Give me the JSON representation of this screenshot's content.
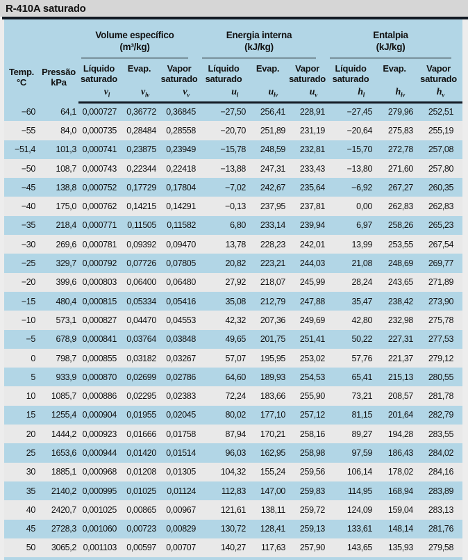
{
  "title": "R-410A saturado",
  "colors": {
    "band_blue": "#b2d6e6",
    "row_gray": "#e9e9e9",
    "title_gray": "#d6d6d6",
    "rule_dark": "#131a24",
    "text": "#121212"
  },
  "table": {
    "col_headers": {
      "temp": {
        "l1": "Temp.",
        "l2": "°C"
      },
      "pressure": {
        "l1": "Pressão",
        "l2": "kPa"
      }
    },
    "groups": [
      {
        "title": "Volume específico",
        "unit": "(m³/kg)"
      },
      {
        "title": "Energia interna",
        "unit": "(kJ/kg)"
      },
      {
        "title": "Entalpia",
        "unit": "(kJ/kg)"
      }
    ],
    "sub_headers": [
      {
        "l1": "Líquido",
        "l2": "saturado"
      },
      {
        "l1": "Evap.",
        "l2": ""
      },
      {
        "l1": "Vapor",
        "l2": "saturado"
      }
    ],
    "symbols": [
      {
        "base": "v",
        "sub": "l"
      },
      {
        "base": "v",
        "sub": "lv"
      },
      {
        "base": "v",
        "sub": "v"
      },
      {
        "base": "u",
        "sub": "l"
      },
      {
        "base": "u",
        "sub": "lv"
      },
      {
        "base": "u",
        "sub": "v"
      },
      {
        "base": "h",
        "sub": "l"
      },
      {
        "base": "h",
        "sub": "lv"
      },
      {
        "base": "h",
        "sub": "v"
      }
    ],
    "column_keys": [
      "temp",
      "pressure",
      "v-liq",
      "v-evap",
      "v-vap",
      "u-liq",
      "u-evap",
      "u-vap",
      "h-liq",
      "h-evap",
      "h-vap"
    ],
    "rows": [
      [
        "−60",
        "64,1",
        "0,000727",
        "0,36772",
        "0,36845",
        "−27,50",
        "256,41",
        "228,91",
        "−27,45",
        "279,96",
        "252,51"
      ],
      [
        "−55",
        "84,0",
        "0,000735",
        "0,28484",
        "0,28558",
        "−20,70",
        "251,89",
        "231,19",
        "−20,64",
        "275,83",
        "255,19"
      ],
      [
        "−51,4",
        "101,3",
        "0,000741",
        "0,23875",
        "0,23949",
        "−15,78",
        "248,59",
        "232,81",
        "−15,70",
        "272,78",
        "257,08"
      ],
      [
        "−50",
        "108,7",
        "0,000743",
        "0,22344",
        "0,22418",
        "−13,88",
        "247,31",
        "233,43",
        "−13,80",
        "271,60",
        "257,80"
      ],
      [
        "−45",
        "138,8",
        "0,000752",
        "0,17729",
        "0,17804",
        "−7,02",
        "242,67",
        "235,64",
        "−6,92",
        "267,27",
        "260,35"
      ],
      [
        "−40",
        "175,0",
        "0,000762",
        "0,14215",
        "0,14291",
        "−0,13",
        "237,95",
        "237,81",
        "0,00",
        "262,83",
        "262,83"
      ],
      [
        "−35",
        "218,4",
        "0,000771",
        "0,11505",
        "0,11582",
        "6,80",
        "233,14",
        "239,94",
        "6,97",
        "258,26",
        "265,23"
      ],
      [
        "−30",
        "269,6",
        "0,000781",
        "0,09392",
        "0,09470",
        "13,78",
        "228,23",
        "242,01",
        "13,99",
        "253,55",
        "267,54"
      ],
      [
        "−25",
        "329,7",
        "0,000792",
        "0,07726",
        "0,07805",
        "20,82",
        "223,21",
        "244,03",
        "21,08",
        "248,69",
        "269,77"
      ],
      [
        "−20",
        "399,6",
        "0,000803",
        "0,06400",
        "0,06480",
        "27,92",
        "218,07",
        "245,99",
        "28,24",
        "243,65",
        "271,89"
      ],
      [
        "−15",
        "480,4",
        "0,000815",
        "0,05334",
        "0,05416",
        "35,08",
        "212,79",
        "247,88",
        "35,47",
        "238,42",
        "273,90"
      ],
      [
        "−10",
        "573,1",
        "0,000827",
        "0,04470",
        "0,04553",
        "42,32",
        "207,36",
        "249,69",
        "42,80",
        "232,98",
        "275,78"
      ],
      [
        "−5",
        "678,9",
        "0,000841",
        "0,03764",
        "0,03848",
        "49,65",
        "201,75",
        "251,41",
        "50,22",
        "227,31",
        "277,53"
      ],
      [
        "0",
        "798,7",
        "0,000855",
        "0,03182",
        "0,03267",
        "57,07",
        "195,95",
        "253,02",
        "57,76",
        "221,37",
        "279,12"
      ],
      [
        "5",
        "933,9",
        "0,000870",
        "0,02699",
        "0,02786",
        "64,60",
        "189,93",
        "254,53",
        "65,41",
        "215,13",
        "280,55"
      ],
      [
        "10",
        "1085,7",
        "0,000886",
        "0,02295",
        "0,02383",
        "72,24",
        "183,66",
        "255,90",
        "73,21",
        "208,57",
        "281,78"
      ],
      [
        "15",
        "1255,4",
        "0,000904",
        "0,01955",
        "0,02045",
        "80,02",
        "177,10",
        "257,12",
        "81,15",
        "201,64",
        "282,79"
      ],
      [
        "20",
        "1444,2",
        "0,000923",
        "0,01666",
        "0,01758",
        "87,94",
        "170,21",
        "258,16",
        "89,27",
        "194,28",
        "283,55"
      ],
      [
        "25",
        "1653,6",
        "0,000944",
        "0,01420",
        "0,01514",
        "96,03",
        "162,95",
        "258,98",
        "97,59",
        "186,43",
        "284,02"
      ],
      [
        "30",
        "1885,1",
        "0,000968",
        "0,01208",
        "0,01305",
        "104,32",
        "155,24",
        "259,56",
        "106,14",
        "178,02",
        "284,16"
      ],
      [
        "35",
        "2140,2",
        "0,000995",
        "0,01025",
        "0,01124",
        "112,83",
        "147,00",
        "259,83",
        "114,95",
        "168,94",
        "283,89"
      ],
      [
        "40",
        "2420,7",
        "0,001025",
        "0,00865",
        "0,00967",
        "121,61",
        "138,11",
        "259,72",
        "124,09",
        "159,04",
        "283,13"
      ],
      [
        "45",
        "2728,3",
        "0,001060",
        "0,00723",
        "0,00829",
        "130,72",
        "128,41",
        "259,13",
        "133,61",
        "148,14",
        "281,76"
      ],
      [
        "50",
        "3065,2",
        "0,001103",
        "0,00597",
        "0,00707",
        "140,27",
        "117,63",
        "257,90",
        "143,65",
        "135,93",
        "279,58"
      ]
    ]
  }
}
